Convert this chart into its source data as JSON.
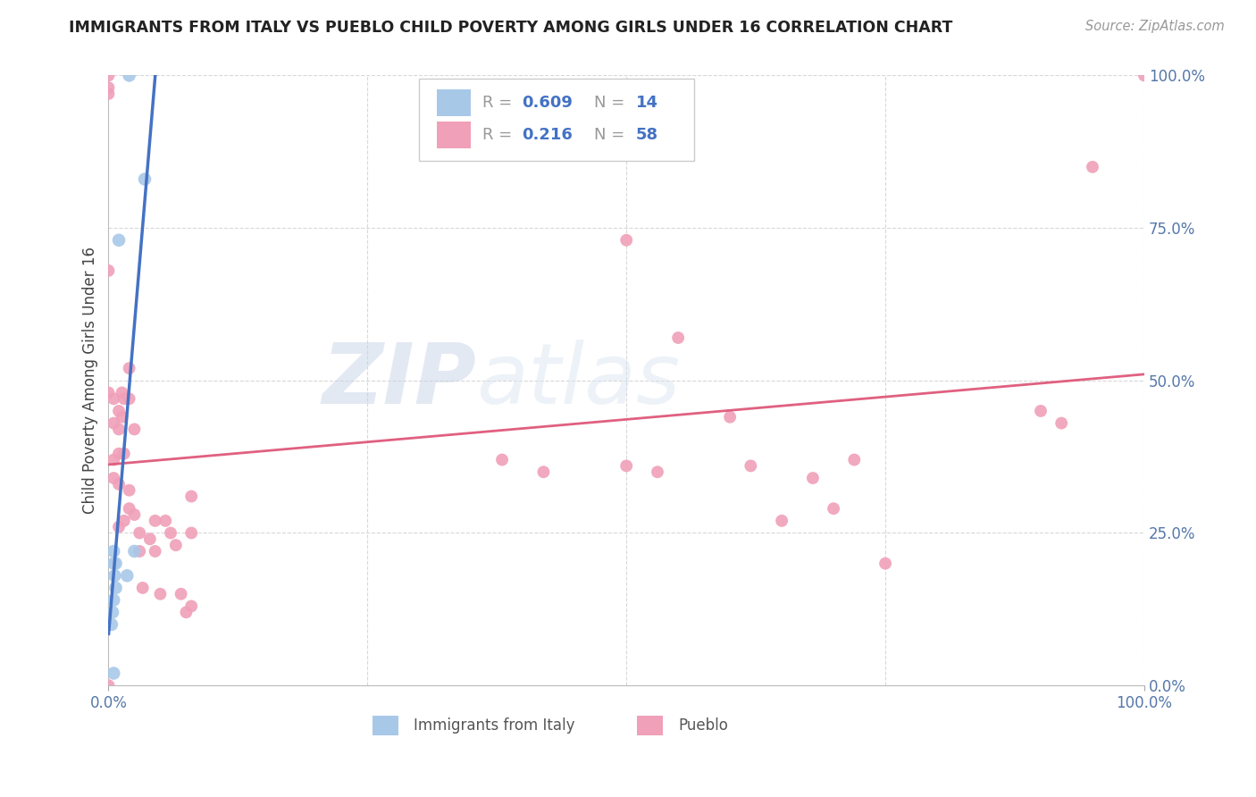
{
  "title": "IMMIGRANTS FROM ITALY VS PUEBLO CHILD POVERTY AMONG GIRLS UNDER 16 CORRELATION CHART",
  "source": "Source: ZipAtlas.com",
  "ylabel": "Child Poverty Among Girls Under 16",
  "R1": 0.609,
  "N1": 14,
  "R2": 0.216,
  "N2": 58,
  "color_blue": "#a8c8e8",
  "color_blue_line": "#4472c4",
  "color_blue_line_dash": "#7aa8d8",
  "color_pink": "#f0a0b8",
  "color_pink_line": "#e06080",
  "legend_1_label": "Immigrants from Italy",
  "legend_2_label": "Pueblo",
  "watermark_zip": "ZIP",
  "watermark_atlas": "atlas",
  "background_color": "#ffffff",
  "grid_color": "#d8d8d8",
  "blue_points_x": [
    2.0,
    3.5,
    1.0,
    0.5,
    0.5,
    0.7,
    0.6,
    0.7,
    0.5,
    0.4,
    0.3,
    2.5,
    1.8,
    0.5
  ],
  "blue_points_y": [
    100.0,
    83.0,
    73.0,
    22.0,
    20.0,
    20.0,
    18.0,
    16.0,
    14.0,
    12.0,
    10.0,
    22.0,
    18.0,
    2.0
  ],
  "pink_points_x": [
    0.0,
    0.5,
    0.5,
    0.5,
    0.5,
    1.0,
    1.0,
    1.0,
    1.0,
    1.0,
    1.3,
    1.3,
    1.5,
    1.5,
    1.5,
    2.0,
    2.0,
    2.0,
    2.0,
    2.5,
    2.5,
    3.0,
    3.0,
    3.3,
    4.0,
    4.5,
    4.5,
    5.0,
    5.5,
    6.0,
    6.5,
    7.0,
    7.5,
    8.0,
    8.0,
    8.0,
    0.0,
    0.0,
    0.0,
    0.0,
    0.0,
    38.0,
    42.0,
    50.0,
    50.0,
    53.0,
    55.0,
    60.0,
    62.0,
    65.0,
    68.0,
    70.0,
    72.0,
    75.0,
    90.0,
    92.0,
    95.0,
    100.0
  ],
  "pink_points_y": [
    48.0,
    47.0,
    43.0,
    37.0,
    34.0,
    45.0,
    42.0,
    38.0,
    33.0,
    26.0,
    48.0,
    44.0,
    47.0,
    38.0,
    27.0,
    52.0,
    47.0,
    32.0,
    29.0,
    42.0,
    28.0,
    25.0,
    22.0,
    16.0,
    24.0,
    27.0,
    22.0,
    15.0,
    27.0,
    25.0,
    23.0,
    15.0,
    12.0,
    13.0,
    25.0,
    31.0,
    100.0,
    98.0,
    97.0,
    0.0,
    68.0,
    37.0,
    35.0,
    73.0,
    36.0,
    35.0,
    57.0,
    44.0,
    36.0,
    27.0,
    34.0,
    29.0,
    37.0,
    20.0,
    45.0,
    43.0,
    85.0,
    100.0
  ]
}
